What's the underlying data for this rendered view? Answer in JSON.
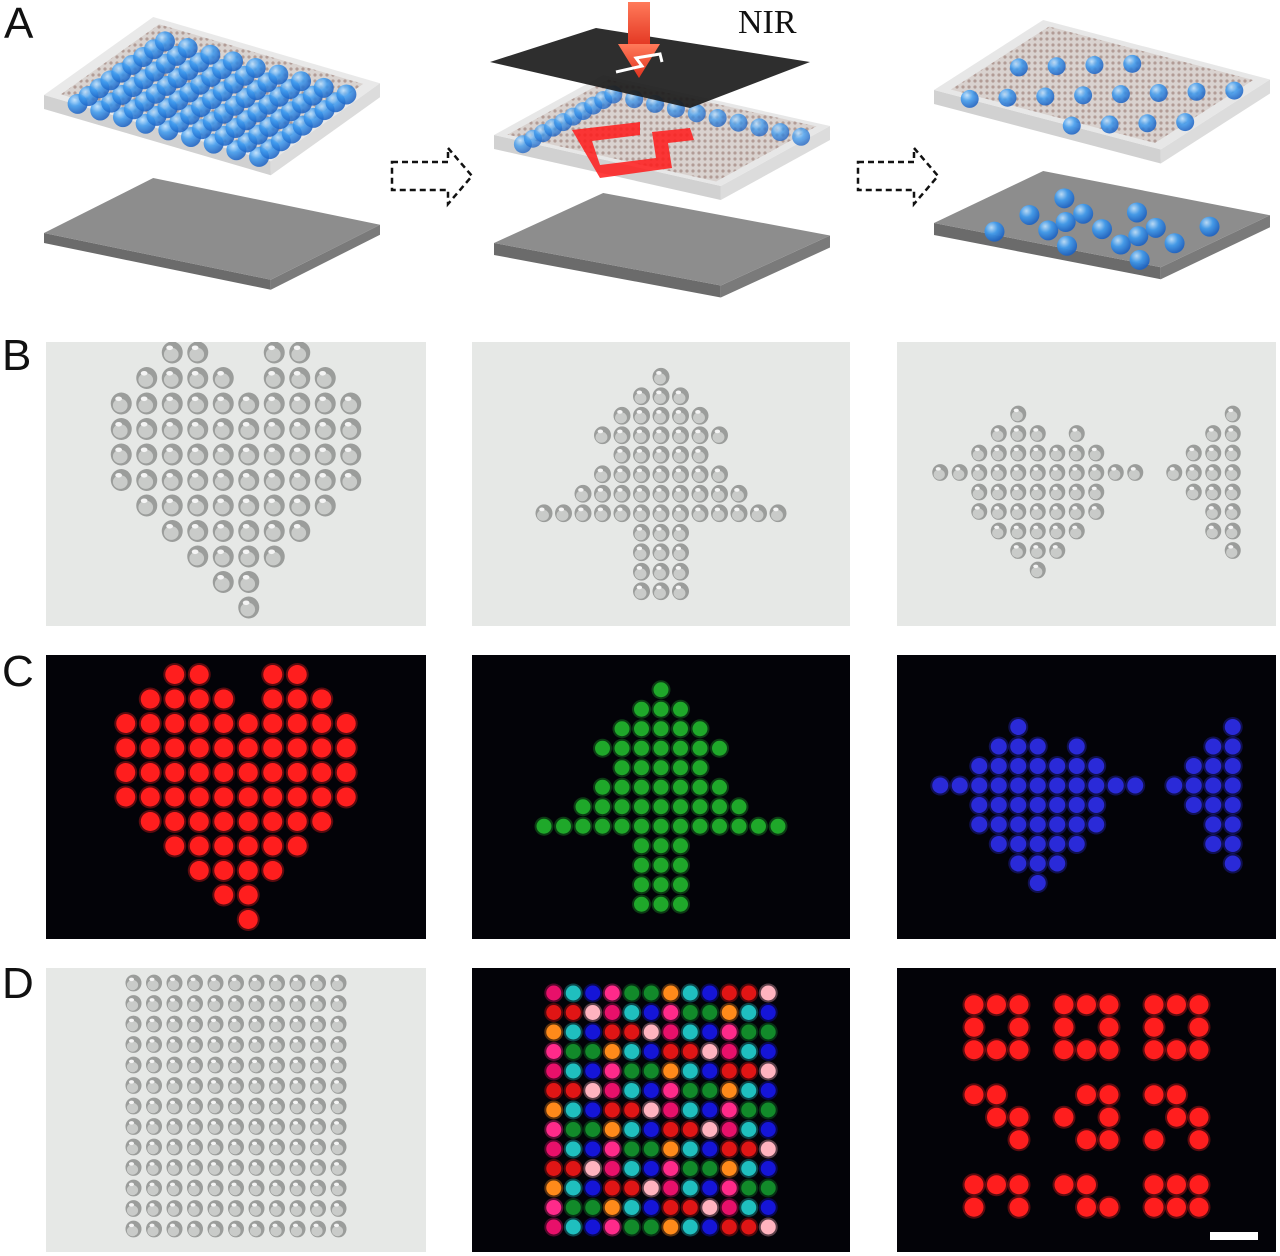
{
  "figure": {
    "panel_labels": [
      "A",
      "B",
      "C",
      "D"
    ],
    "nir_label": "NIR",
    "colors": {
      "droplet_blue": "#3d9bf0",
      "nir_beam": "#f0503a",
      "pattern_red": "#ff1a1a",
      "fluor_red": "#ff1e1e",
      "fluor_green": "#1fa82a",
      "fluor_blue": "#2a2ad8",
      "substrate_gray": "#8a8a8a",
      "mask_black": "#1c1c1c"
    },
    "icons": [
      "dashed-arrow-icon",
      "nir-beam-icon",
      "scale-bar"
    ]
  }
}
